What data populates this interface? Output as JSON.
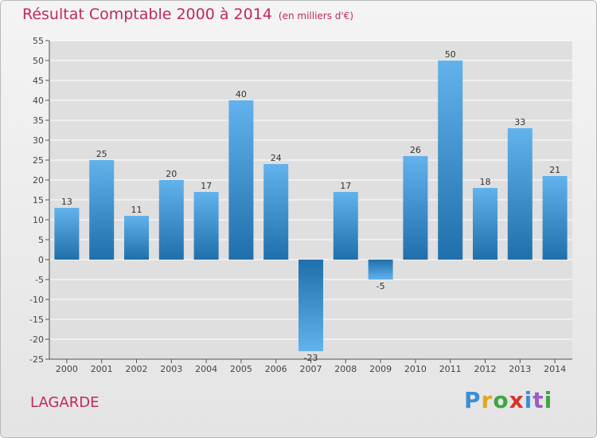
{
  "title": "Résultat Comptable 2000 à 2014",
  "subtitle": "(en milliers d'€)",
  "commune": "LAGARDE",
  "logo": [
    "P",
    "r",
    "o",
    "x",
    "i",
    "t",
    "i"
  ],
  "colors": {
    "title": "#c2285b",
    "bar_light": "#62b2ec",
    "bar_dark": "#1f6fac",
    "grid": "#ffffff"
  },
  "chart_data": {
    "type": "bar",
    "title": "Résultat Comptable 2000 à 2014",
    "subtitle": "(en milliers d'€)",
    "categories": [
      "2000",
      "2001",
      "2002",
      "2003",
      "2004",
      "2005",
      "2006",
      "2007",
      "2008",
      "2009",
      "2010",
      "2011",
      "2012",
      "2013",
      "2014"
    ],
    "values": [
      13,
      25,
      11,
      20,
      17,
      40,
      24,
      -23,
      17,
      -5,
      26,
      50,
      18,
      33,
      21
    ],
    "ylim": [
      -25,
      55
    ],
    "yticks": [
      -25,
      -20,
      -15,
      -10,
      -5,
      0,
      5,
      10,
      15,
      20,
      25,
      30,
      35,
      40,
      45,
      50,
      55
    ],
    "grid": true,
    "legend": "none"
  }
}
